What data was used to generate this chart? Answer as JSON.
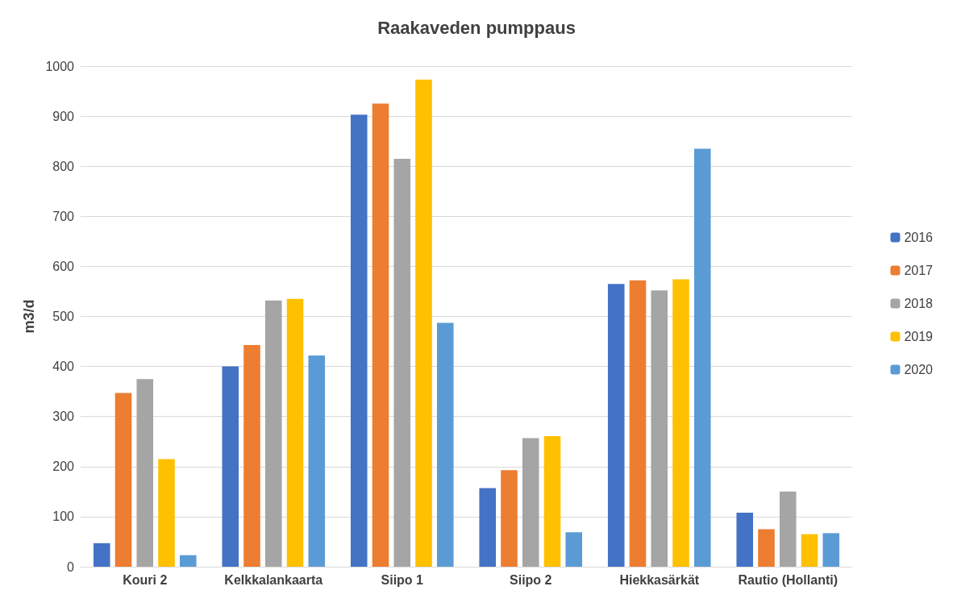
{
  "chart_data": {
    "type": "bar",
    "title": "Raakaveden pumppaus",
    "ylabel": "m3/d",
    "categories": [
      "Kouri 2",
      "Kelkkalankaarta",
      "Siipo 1",
      "Siipo 2",
      "Hiekkasärkät",
      "Rautio (Hollanti)"
    ],
    "series": [
      {
        "name": "2016",
        "color": "#4472c4",
        "values": [
          47,
          400,
          903,
          157,
          565,
          108
        ]
      },
      {
        "name": "2017",
        "color": "#ed7d31",
        "values": [
          347,
          443,
          925,
          193,
          572,
          75
        ]
      },
      {
        "name": "2018",
        "color": "#a5a5a5",
        "values": [
          375,
          532,
          815,
          257,
          552,
          150
        ]
      },
      {
        "name": "2019",
        "color": "#ffc000",
        "values": [
          215,
          535,
          973,
          261,
          574,
          65
        ]
      },
      {
        "name": "2020",
        "color": "#5b9bd5",
        "values": [
          23,
          422,
          487,
          69,
          835,
          67
        ]
      }
    ],
    "ylim": [
      0,
      1000
    ],
    "yticks": [
      0,
      100,
      200,
      300,
      400,
      500,
      600,
      700,
      800,
      900,
      1000
    ],
    "grid": "y",
    "legend": "right"
  }
}
